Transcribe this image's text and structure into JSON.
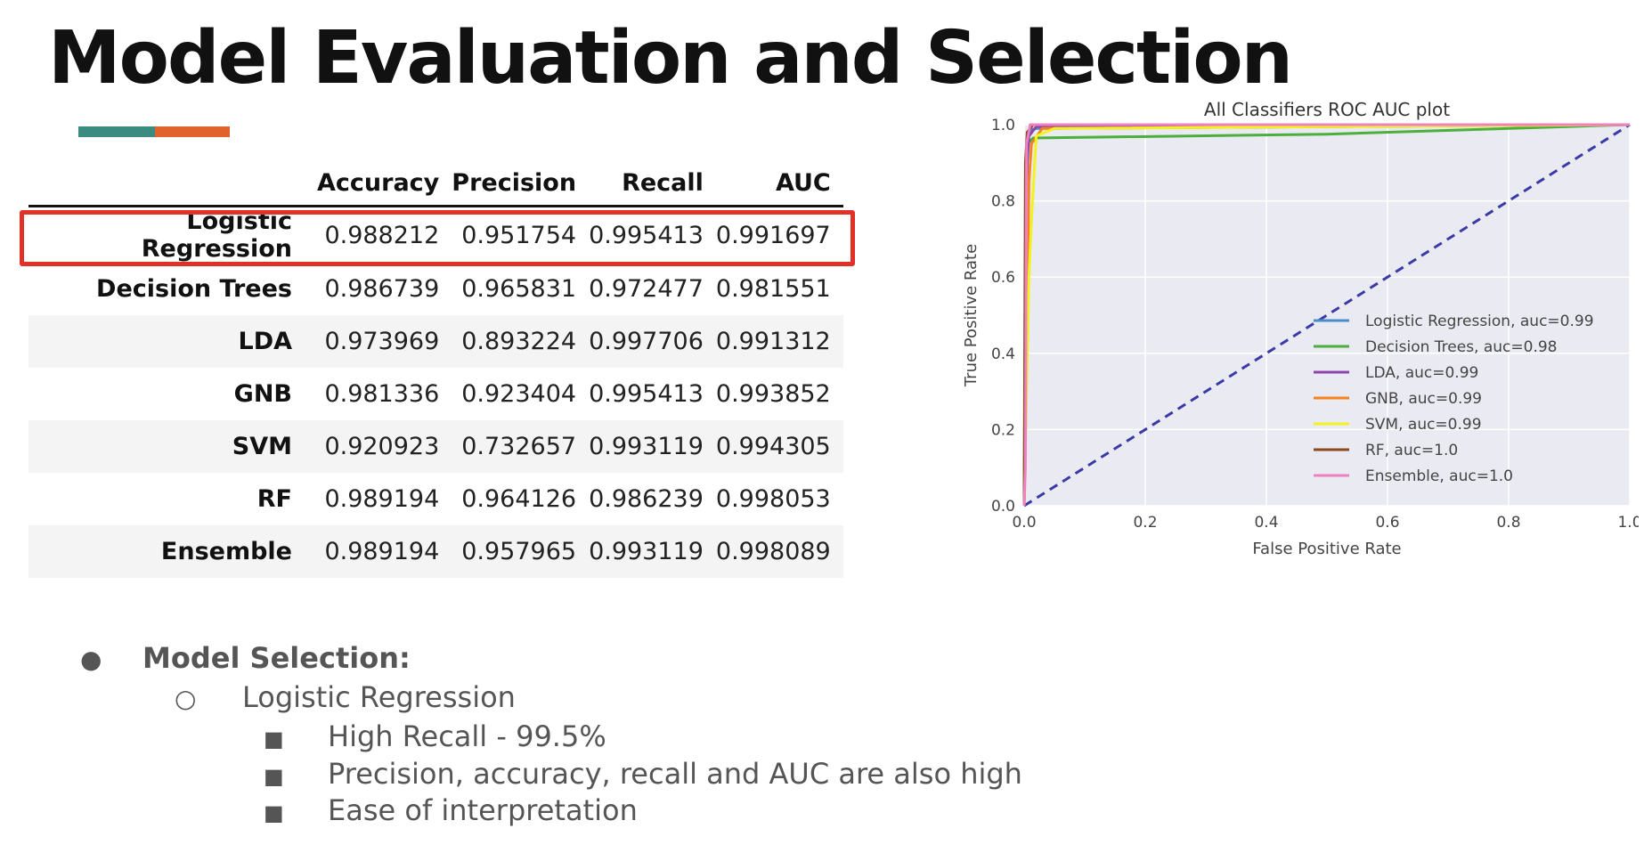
{
  "slide": {
    "title": "Model Evaluation and Selection",
    "accent_colors": [
      "#3b8c80",
      "#e0622c"
    ]
  },
  "table": {
    "columns": [
      "Accuracy",
      "Precision",
      "Recall",
      "AUC"
    ],
    "rows": [
      {
        "name": "Logistic Regression",
        "values": [
          "0.988212",
          "0.951754",
          "0.995413",
          "0.991697"
        ]
      },
      {
        "name": "Decision Trees",
        "values": [
          "0.986739",
          "0.965831",
          "0.972477",
          "0.981551"
        ]
      },
      {
        "name": "LDA",
        "values": [
          "0.973969",
          "0.893224",
          "0.997706",
          "0.991312"
        ]
      },
      {
        "name": "GNB",
        "values": [
          "0.981336",
          "0.923404",
          "0.995413",
          "0.993852"
        ]
      },
      {
        "name": "SVM",
        "values": [
          "0.920923",
          "0.732657",
          "0.993119",
          "0.994305"
        ]
      },
      {
        "name": "RF",
        "values": [
          "0.989194",
          "0.964126",
          "0.986239",
          "0.998053"
        ]
      },
      {
        "name": "Ensemble",
        "values": [
          "0.989194",
          "0.957965",
          "0.993119",
          "0.998089"
        ]
      }
    ],
    "highlight_color": "#e03028"
  },
  "chart_data": {
    "type": "line",
    "title": "All Classifiers ROC AUC plot",
    "xlabel": "False Positive Rate",
    "ylabel": "True Positive Rate",
    "xlim": [
      0.0,
      1.0
    ],
    "ylim": [
      0.0,
      1.0
    ],
    "xticks": [
      "0.0",
      "0.2",
      "0.4",
      "0.6",
      "0.8",
      "1.0"
    ],
    "yticks": [
      "0.0",
      "0.2",
      "0.4",
      "0.6",
      "0.8",
      "1.0"
    ],
    "grid": true,
    "legend_position": "lower-right",
    "series": [
      {
        "name": "Logistic Regression, auc=0.99",
        "color": "#4c8cc8",
        "x": [
          0,
          0.003,
          0.006,
          0.01,
          0.02,
          1.0
        ],
        "y": [
          0,
          0.92,
          0.97,
          0.985,
          0.99,
          1.0
        ]
      },
      {
        "name": "Decision Trees, auc=0.98",
        "color": "#4caf3c",
        "x": [
          0,
          0.005,
          0.015,
          0.5,
          1.0
        ],
        "y": [
          0,
          0.95,
          0.965,
          0.975,
          1.0
        ]
      },
      {
        "name": "LDA, auc=0.99",
        "color": "#8e44ad",
        "x": [
          0,
          0.003,
          0.005,
          0.008,
          0.02,
          1.0
        ],
        "y": [
          0,
          0.25,
          0.9,
          0.97,
          0.995,
          1.0
        ]
      },
      {
        "name": "GNB, auc=0.99",
        "color": "#f5821f",
        "x": [
          0,
          0.004,
          0.008,
          0.012,
          0.03,
          1.0
        ],
        "y": [
          0,
          0.4,
          0.85,
          0.95,
          0.99,
          1.0
        ]
      },
      {
        "name": "SVM, auc=0.99",
        "color": "#f2f21e",
        "x": [
          0,
          0.008,
          0.012,
          0.02,
          0.05,
          1.0
        ],
        "y": [
          0,
          0.6,
          0.75,
          0.97,
          0.99,
          1.0
        ]
      },
      {
        "name": "RF, auc=1.0",
        "color": "#8b4a1f",
        "x": [
          0,
          0.002,
          0.005,
          0.015,
          1.0
        ],
        "y": [
          0,
          0.9,
          0.98,
          1.0,
          1.0
        ]
      },
      {
        "name": "Ensemble, auc=1.0",
        "color": "#ee82c0",
        "x": [
          0,
          0.002,
          0.004,
          0.01,
          1.0
        ],
        "y": [
          0,
          0.1,
          0.95,
          1.0,
          1.0
        ]
      }
    ],
    "reference_line": {
      "x": [
        0,
        1
      ],
      "y": [
        0,
        1
      ],
      "color": "#3a3aa6",
      "style": "dashed"
    }
  },
  "bullets": {
    "level1": "Model Selection:",
    "level2": "Logistic Regression",
    "level3": [
      "High Recall - 99.5%",
      "Precision, accuracy, recall and AUC are also high",
      "Ease of interpretation"
    ],
    "markers": [
      "●",
      "○",
      "■"
    ]
  }
}
